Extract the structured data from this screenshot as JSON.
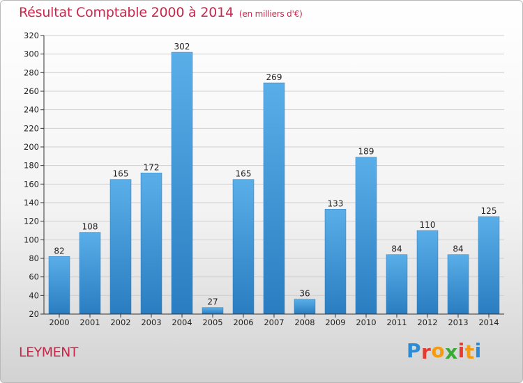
{
  "header": {
    "title": "Résultat Comptable 2000 à 2014",
    "unit": "(en milliers d'€)"
  },
  "footer": {
    "commune": "LEYMENT",
    "logo": {
      "letters": [
        "P",
        "r",
        "o",
        "x",
        "i",
        "t",
        "i"
      ],
      "colors": [
        "#2b8bd6",
        "#e63b2e",
        "#f39c12",
        "#3aa935",
        "#e63b2e",
        "#f39c12",
        "#2b8bd6"
      ]
    }
  },
  "chart_data": {
    "type": "bar",
    "categories": [
      "2000",
      "2001",
      "2002",
      "2003",
      "2004",
      "2005",
      "2006",
      "2007",
      "2008",
      "2009",
      "2010",
      "2011",
      "2012",
      "2013",
      "2014"
    ],
    "values": [
      82,
      108,
      165,
      172,
      302,
      27,
      165,
      269,
      36,
      133,
      189,
      84,
      110,
      84,
      125
    ],
    "title": "Résultat Comptable 2000 à 2014",
    "ylim": [
      20,
      320
    ],
    "yticks": [
      20,
      40,
      60,
      80,
      100,
      120,
      140,
      160,
      180,
      200,
      220,
      240,
      260,
      280,
      300,
      320
    ],
    "grid": true,
    "colors": {
      "bar_top": "#5aaee8",
      "bar_bottom": "#2a7dc0",
      "grid": "#cfcfcf",
      "axis": "#333333"
    }
  }
}
